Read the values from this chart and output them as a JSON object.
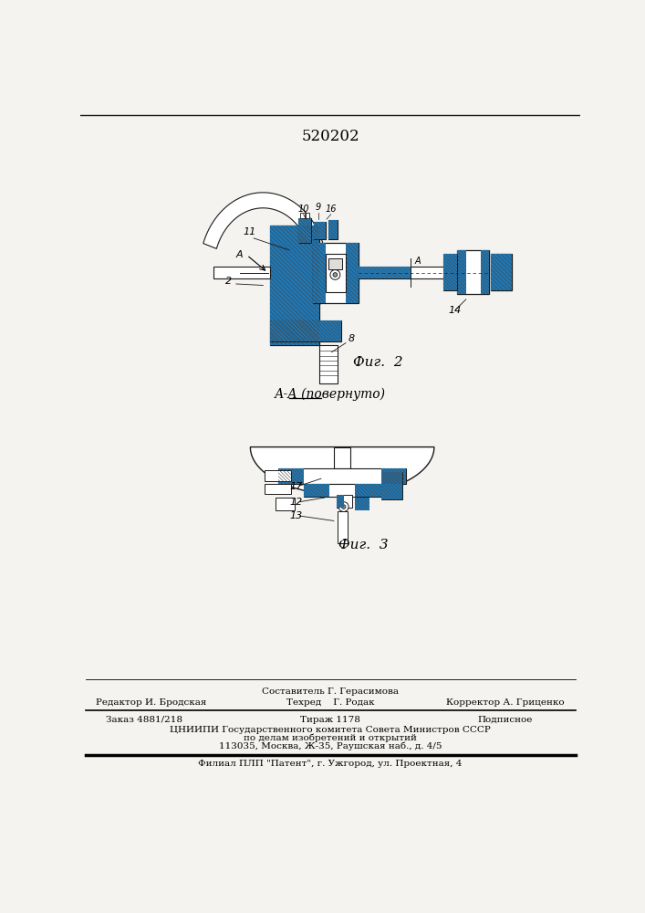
{
  "patent_number": "520202",
  "bg_color": "#f5f3ef",
  "paper_color": "#f8f7f3",
  "line_color": "#1a1a1a",
  "hatch_color": "#333333",
  "fig2_label": "Фиг.  2",
  "fig3_label": "Фиг.  3",
  "section_label": "А-А (повернуто)",
  "footer": {
    "sestavitel_label": "Составитель Г. Герасимова",
    "redaktor_label": "Редактор И. Бродская",
    "tekhred_label": "Техред    Г. Родак",
    "korrektor_label": "Корректор А. Гриценко",
    "zakaz": "Заказ 4881/218",
    "tirazh": "Тираж 1178",
    "podpisnoe": "Подписное",
    "tsniipi": "ЦНИИПИ Государственного комитета Совета Министров СССР",
    "po_delam": "по делам изобретений и открытий",
    "address": "113035, Москва, Ж-35, Раушская наб., д. 4/5",
    "filial": "Филиал ПЛП \"Патент\", г. Ужгород, ул. Проектная, 4"
  }
}
